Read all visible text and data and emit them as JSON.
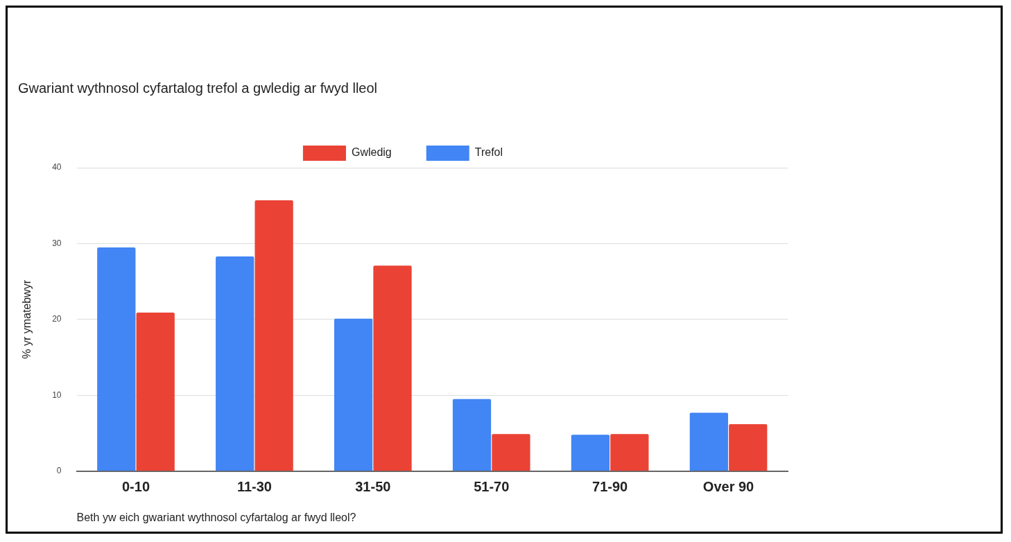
{
  "chart_data": {
    "type": "bar",
    "title": "Gwariant wythnosol cyfartalog trefol a gwledig ar fwyd lleol",
    "xlabel": "Beth yw eich gwariant wythnosol cyfartalog ar fwyd lleol?",
    "ylabel": "% yr ymatebwyr",
    "categories": [
      "0-10",
      "11-30",
      "31-50",
      "51-70",
      "71-90",
      "Over 90"
    ],
    "series": [
      {
        "name": "Trefol",
        "color": "#4285f4",
        "values": [
          29.5,
          28.3,
          20.1,
          9.5,
          4.8,
          7.7
        ]
      },
      {
        "name": "Gwledig",
        "color": "#ea4335",
        "values": [
          20.9,
          35.7,
          27.1,
          4.9,
          4.9,
          6.2
        ]
      }
    ],
    "ylim": [
      0,
      40
    ],
    "yticks": [
      0,
      10,
      20,
      30,
      40
    ],
    "grid": "y",
    "legend": "top"
  }
}
